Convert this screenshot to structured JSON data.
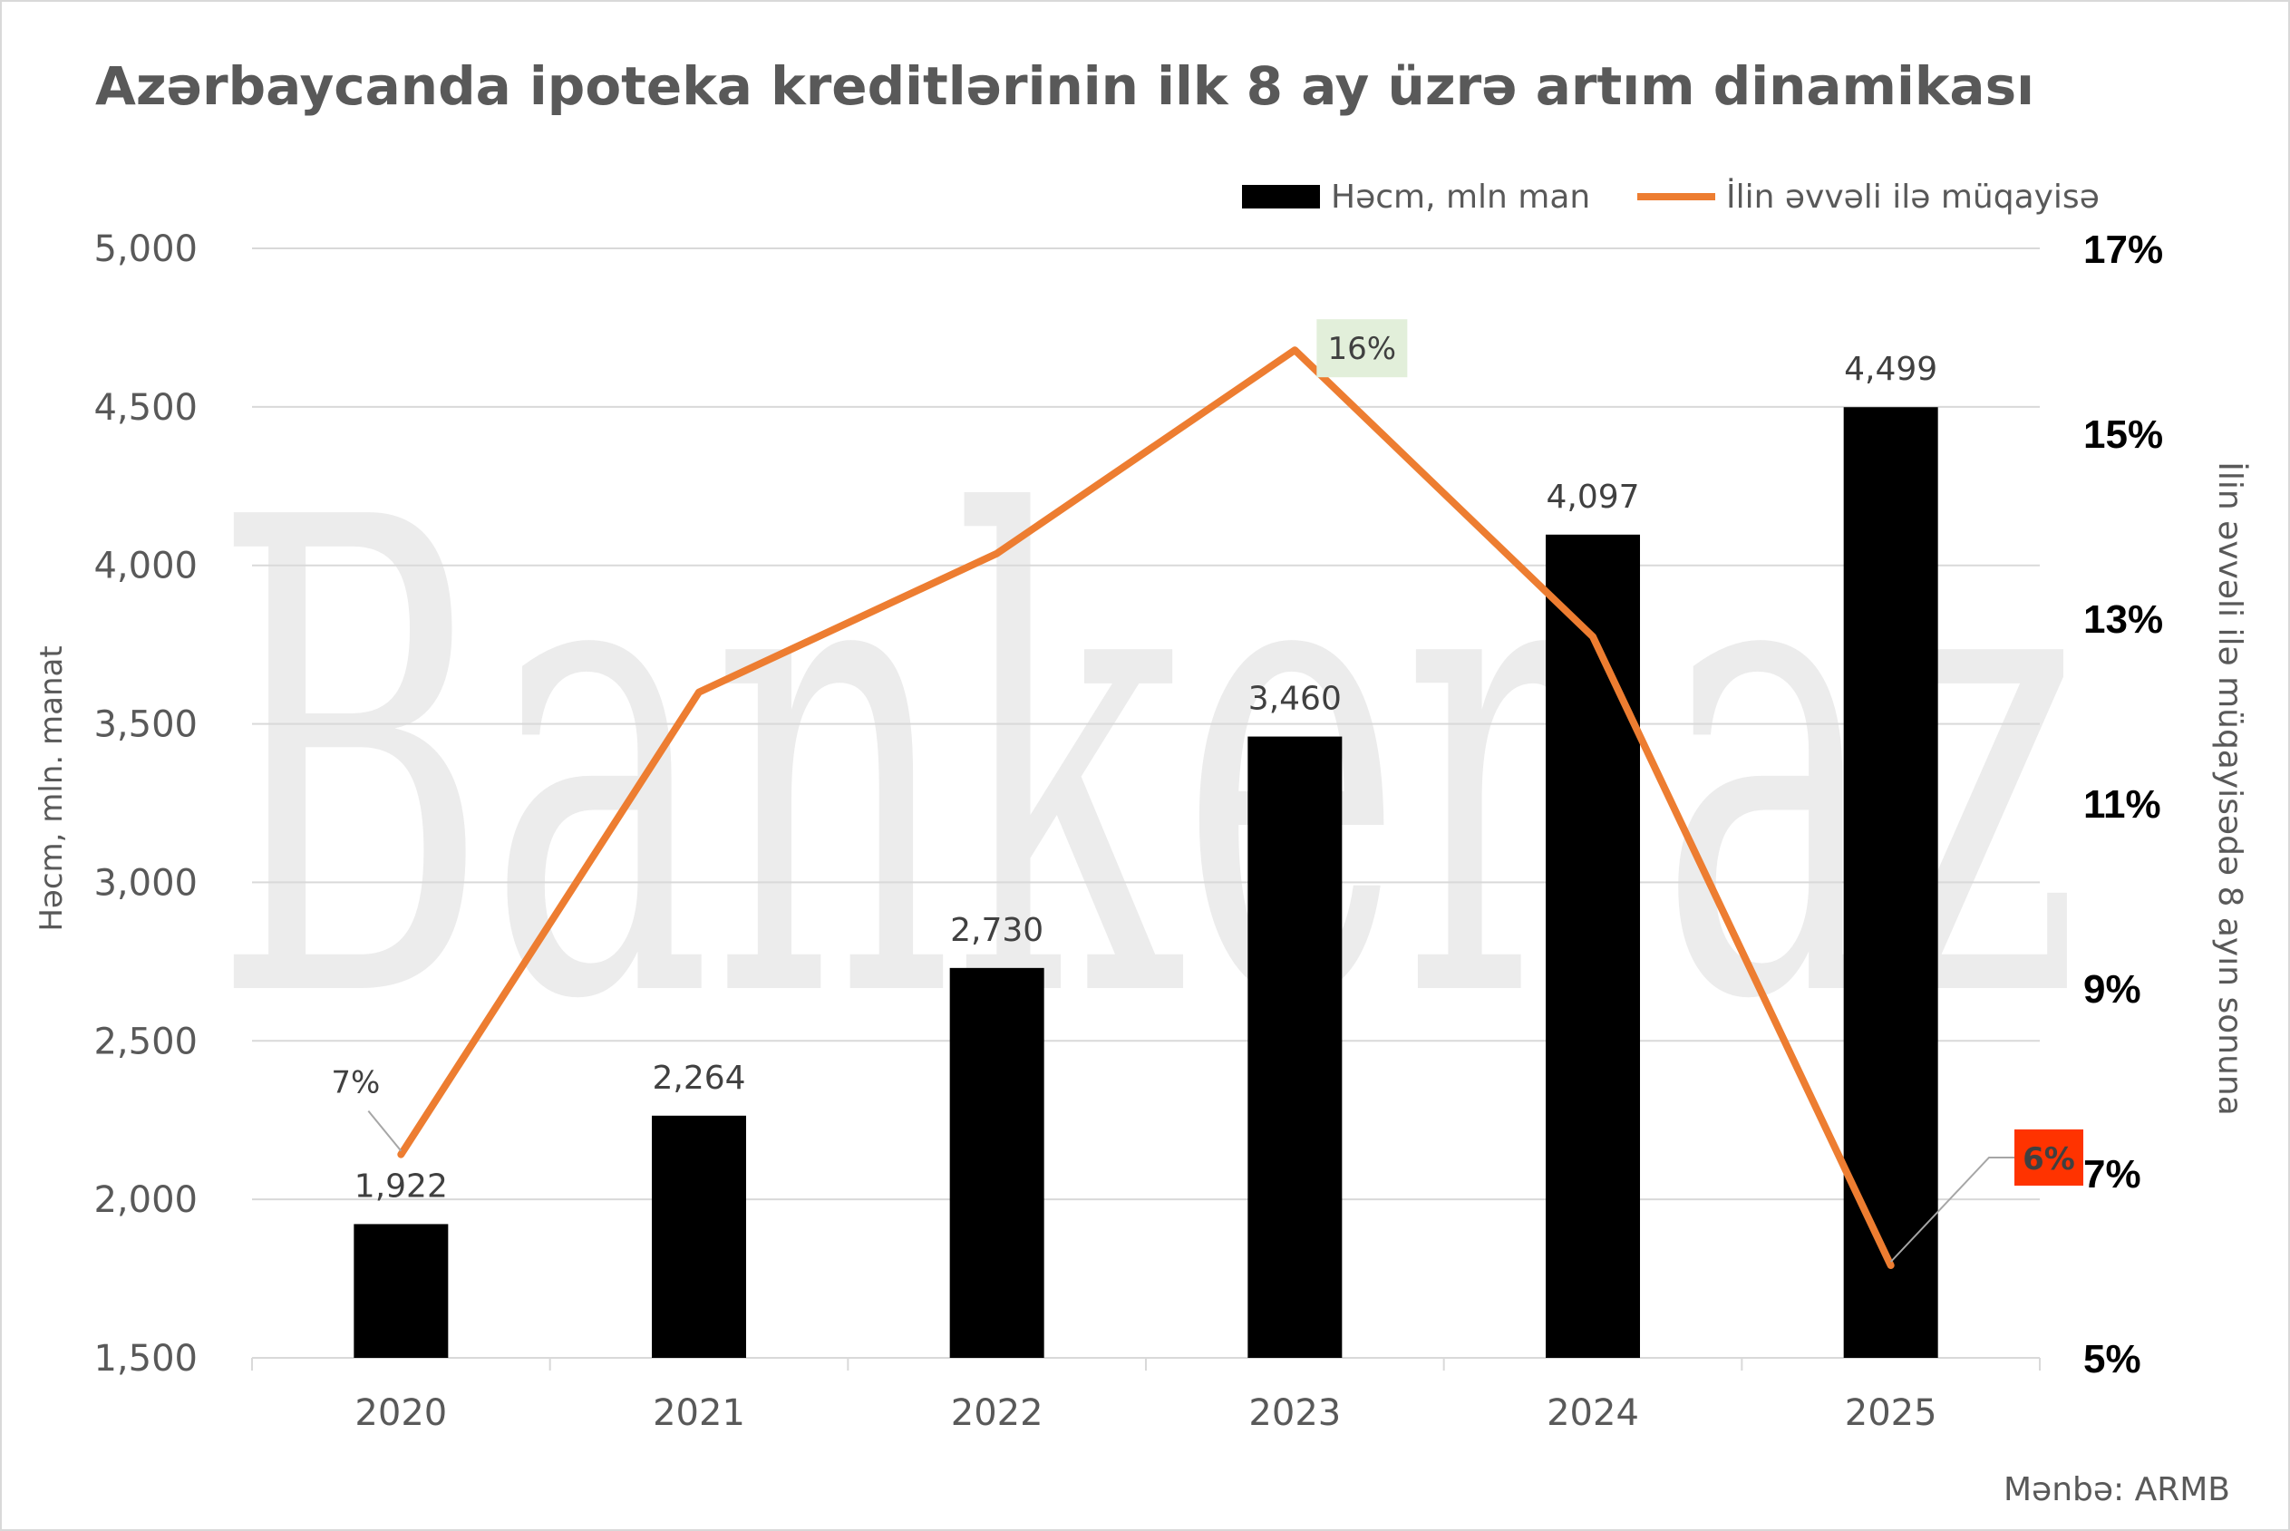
{
  "chart_data": {
    "type": "bar",
    "title": "Azərbaycanda ipoteka kreditlərinin ilk 8 ay üzrə artım dinamikası",
    "categories": [
      "2020",
      "2021",
      "2022",
      "2023",
      "2024",
      "2025"
    ],
    "series": [
      {
        "name": "Həcm, mln man",
        "type": "bar",
        "axis": "left",
        "color": "#000000",
        "values": [
          1922,
          2264,
          2730,
          3460,
          4097,
          4499
        ],
        "labels": [
          "1,922",
          "2,264",
          "2,730",
          "3,460",
          "4,097",
          "4,499"
        ]
      },
      {
        "name": "İlin əvvəli ilə müqayisə",
        "type": "line",
        "axis": "right",
        "color": "#ED7D31",
        "values": [
          7.2,
          12.2,
          13.7,
          15.9,
          12.8,
          6.0
        ],
        "labels": [
          "7%",
          "",
          "",
          "16%",
          "",
          "6%"
        ]
      }
    ],
    "ylabel": "Həcm, mln. manat",
    "ylim": [
      1500,
      5000
    ],
    "yticks": [
      "1,500",
      "2,000",
      "2,500",
      "3,000",
      "3,500",
      "4,000",
      "4,500",
      "5,000"
    ],
    "y2label": "İlin əvvəli ilə müqayisədə 8 ayın sonuna",
    "y2lim": [
      5,
      17
    ],
    "y2ticks": [
      "5%",
      "7%",
      "9%",
      "11%",
      "13%",
      "15%",
      "17%"
    ],
    "grid": true,
    "legend": "top-right",
    "source": "Mənbə: ARMB",
    "watermark": "Banker.az",
    "label_colors": {
      "peak_label_bg": "#E2EFDA",
      "last_label_bg": "#FF3300"
    }
  }
}
